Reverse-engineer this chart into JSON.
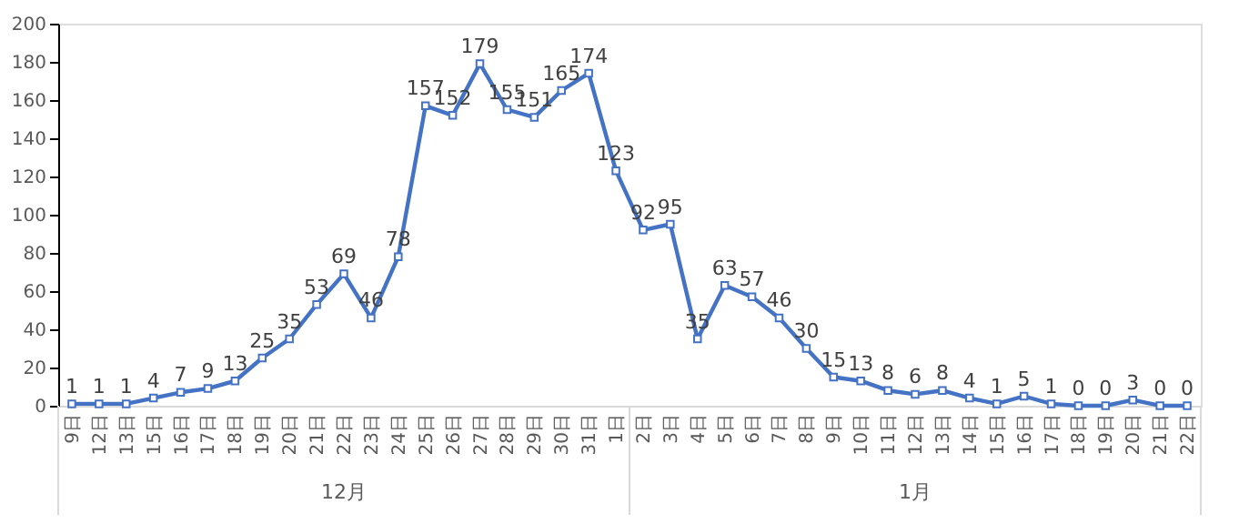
{
  "chart_data": {
    "type": "line",
    "categories": [
      "9日",
      "12日",
      "13日",
      "15日",
      "16日",
      "17日",
      "18日",
      "19日",
      "20日",
      "21日",
      "22日",
      "23日",
      "24日",
      "25日",
      "26日",
      "27日",
      "28日",
      "29日",
      "30日",
      "31日",
      "1日",
      "2日",
      "3日",
      "4日",
      "5日",
      "6日",
      "7日",
      "8日",
      "9日",
      "10日",
      "11日",
      "12日",
      "13日",
      "14日",
      "15日",
      "16日",
      "17日",
      "18日",
      "19日",
      "20日",
      "21日",
      "22日"
    ],
    "series": [
      {
        "color": "#4472c4",
        "values": [
          1,
          1,
          1,
          4,
          7,
          9,
          13,
          25,
          35,
          53,
          69,
          46,
          78,
          157,
          152,
          179,
          155,
          151,
          165,
          174,
          123,
          92,
          95,
          35,
          63,
          57,
          46,
          30,
          15,
          13,
          8,
          6,
          8,
          4,
          1,
          5,
          1,
          0,
          0,
          3,
          0,
          0
        ]
      }
    ],
    "ylim": [
      0,
      200
    ],
    "yticks": [
      0,
      20,
      40,
      60,
      80,
      100,
      120,
      140,
      160,
      180,
      200
    ],
    "annotations": [
      "12月",
      "1月"
    ],
    "data_labels": true,
    "marker": "square",
    "line_style": "solid",
    "grid": false
  }
}
